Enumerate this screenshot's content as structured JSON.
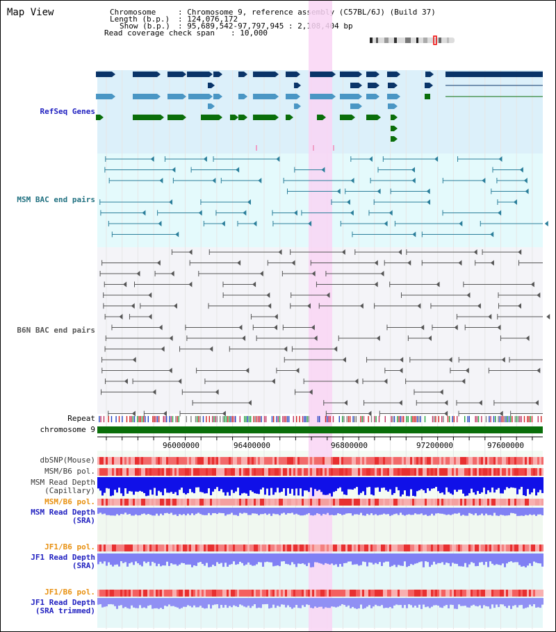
{
  "view": {
    "title": "Map View"
  },
  "header": {
    "chromosome_key": "Chromosome",
    "chromosome_value": ": Chromosome 9, reference assembly (C57BL/6J) (Build 37)",
    "length_key": "Length (b.p.)",
    "length_value": ": 124,076,172",
    "show_key": "Show (b.p.)",
    "show_value": ": 95,689,542-97,797,945 : 2,108,404 bp",
    "coverage_key": "Read coverage check span",
    "coverage_value": ": 10,000"
  },
  "tracks": {
    "refseq": "RefSeq Genes",
    "msm_bac": "MSM BAC end pairs",
    "b6n_bac": "B6N BAC end pairs",
    "repeat": "Repeat",
    "chromosome": "chromosome 9",
    "dbsnp": "dbSNP(Mouse)",
    "msm_b6_pol": "MSM/B6 pol.",
    "msm_depth_cap_1": "MSM Read Depth",
    "msm_depth_cap_2": "(Capillary)",
    "msm_b6_pol_2": "MSM/B6 pol.",
    "msm_depth_sra_1": "MSM Read Depth",
    "msm_depth_sra_2": "(SRA)",
    "jf1_b6_pol": "JF1/B6 pol.",
    "jf1_depth_sra_1": "JF1 Read Depth",
    "jf1_depth_sra_2": "(SRA)",
    "jf1_b6_pol_2": "JF1/B6 pol.",
    "jf1_depth_trim_1": "JF1 Read Depth",
    "jf1_depth_trim_2": "(SRA trimmed)"
  },
  "ruler": {
    "ticks": [
      "96000000",
      "96400000",
      "96800000",
      "97200000",
      "97600000"
    ]
  },
  "colors": {
    "refseq_bg": "#dcf0fa",
    "msm_bg": "#e4fafc",
    "b6n_bg": "#f4f4f8",
    "highlight": "#f9d5f5",
    "refseq_dark": "#0a3468",
    "refseq_mid": "#4a96c4",
    "refseq_green": "#0a6e0a",
    "msm_bac": "#2a7e9a",
    "b6n_bac": "#555555",
    "chrom_bar": "#0a6e0a",
    "depth_blue": "#1010e8",
    "depth_light": "#8080f4",
    "pol_red": "#f05050",
    "label_blue": "#2020c0",
    "label_orange": "#e89010",
    "label_teal": "#207080"
  }
}
